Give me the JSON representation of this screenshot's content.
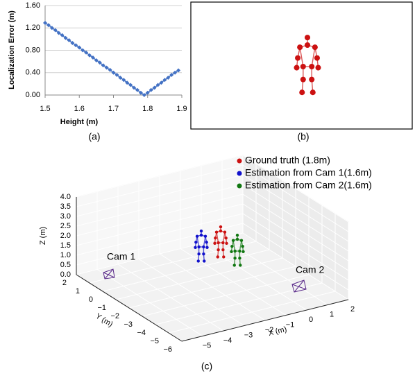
{
  "chart_data": [
    {
      "type": "line",
      "caption": "(a)",
      "xlabel": "Height (m)",
      "ylabel": "Localization Error (m)",
      "color": "#4472c4",
      "grid": true,
      "x": [
        1.5,
        1.51,
        1.52,
        1.53,
        1.54,
        1.55,
        1.56,
        1.57,
        1.58,
        1.59,
        1.6,
        1.61,
        1.62,
        1.63,
        1.64,
        1.65,
        1.66,
        1.67,
        1.68,
        1.69,
        1.7,
        1.71,
        1.72,
        1.73,
        1.74,
        1.75,
        1.76,
        1.77,
        1.78,
        1.79,
        1.8,
        1.81,
        1.82,
        1.83,
        1.84,
        1.85,
        1.86,
        1.87,
        1.88,
        1.89
      ],
      "values": [
        1.29,
        1.25,
        1.2,
        1.16,
        1.11,
        1.07,
        1.02,
        0.98,
        0.93,
        0.89,
        0.85,
        0.8,
        0.76,
        0.71,
        0.67,
        0.62,
        0.58,
        0.53,
        0.49,
        0.45,
        0.4,
        0.36,
        0.31,
        0.27,
        0.22,
        0.18,
        0.13,
        0.09,
        0.04,
        0,
        0.04,
        0.09,
        0.13,
        0.18,
        0.22,
        0.27,
        0.31,
        0.36,
        0.4,
        0.44
      ],
      "xlim": [
        1.5,
        1.9
      ],
      "xticks": [
        1.5,
        1.6,
        1.7,
        1.8,
        1.9
      ],
      "ylim": [
        0,
        1.6
      ],
      "yticks": [
        {
          "value": 0,
          "label": "0.00"
        },
        {
          "value": 0.4,
          "label": "0.40"
        },
        {
          "value": 0.8,
          "label": "0.80"
        },
        {
          "value": 1.2,
          "label": "1.20"
        },
        {
          "value": 1.6,
          "label": "1.60"
        }
      ]
    },
    {
      "type": "scatter3d",
      "caption": "(c)",
      "xlabel": "X (m)",
      "ylabel": "Y (m)",
      "zlabel": "Z (m)",
      "series": [
        {
          "name": "Ground truth (1.8m)",
          "color": "#cc1111"
        },
        {
          "name": "Estimation from Cam 1(1.6m)",
          "color": "#1111cc"
        },
        {
          "name": "Estimation from Cam 2(1.6m)",
          "color": "#117711"
        }
      ],
      "annotations": [
        "Cam 1",
        "Cam 2"
      ],
      "xlim": [
        -6,
        2
      ],
      "xticks": [
        {
          "value": -5,
          "label": "−5"
        },
        {
          "value": -4,
          "label": "−4"
        },
        {
          "value": -3,
          "label": "−3"
        },
        {
          "value": -2,
          "label": "−2"
        },
        {
          "value": -1,
          "label": "−1"
        },
        0,
        1,
        2
      ],
      "ylim": [
        -6,
        2
      ],
      "yticks": [
        {
          "value": -6,
          "label": "−6"
        },
        {
          "value": -5,
          "label": "−5"
        },
        {
          "value": -4,
          "label": "−4"
        },
        {
          "value": -3,
          "label": "−3"
        },
        {
          "value": -2,
          "label": "−2"
        },
        {
          "value": -1,
          "label": "−1"
        },
        0,
        1,
        2
      ],
      "zlim": [
        0,
        4
      ],
      "zticks": [
        {
          "value": 0,
          "label": "0.0"
        },
        {
          "value": 0.5,
          "label": "0.5"
        },
        {
          "value": 1,
          "label": "1.0"
        },
        {
          "value": 1.5,
          "label": "1.5"
        },
        {
          "value": 2,
          "label": "2.0"
        },
        {
          "value": 2.5,
          "label": "2.5"
        },
        {
          "value": 3,
          "label": "3.0"
        },
        {
          "value": 3.5,
          "label": "3.5"
        },
        {
          "value": 4,
          "label": "4.0"
        }
      ]
    }
  ],
  "image_panel": {
    "caption": "(b)"
  }
}
